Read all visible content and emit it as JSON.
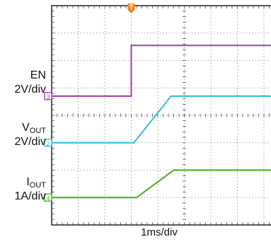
{
  "chart_data": {
    "type": "line",
    "x_division_label": "1ms/div",
    "x_range_div": [
      0,
      10
    ],
    "y_range_div": [
      0,
      8
    ],
    "grid": true,
    "trigger_marker": "T",
    "trigger_x_div": 3.0,
    "channels": [
      {
        "id": "3",
        "label": "EN",
        "scale": "2V/div",
        "color": "#a24ca8",
        "ref_level_div": 4.7,
        "x_div": [
          0,
          3.0,
          3.0,
          10
        ],
        "y_div": [
          4.7,
          4.7,
          6.55,
          6.55
        ]
      },
      {
        "id": "2",
        "label": "V",
        "subscript": "OUT",
        "scale": "2V/div",
        "color": "#3cc0d8",
        "ref_level_div": 3.0,
        "x_div": [
          0,
          3.1,
          4.5,
          10
        ],
        "y_div": [
          3.0,
          3.0,
          4.7,
          4.7
        ]
      },
      {
        "id": "4",
        "label": "I",
        "subscript": "OUT",
        "scale": "1A/div",
        "color": "#4cb82c",
        "ref_level_div": 1.0,
        "x_div": [
          0,
          3.2,
          4.6,
          10
        ],
        "y_div": [
          1.0,
          1.0,
          2.0,
          2.0
        ]
      }
    ]
  }
}
